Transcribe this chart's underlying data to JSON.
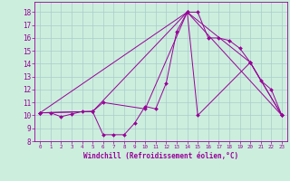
{
  "xlabel": "Windchill (Refroidissement éolien,°C)",
  "bg_color": "#cceedd",
  "grid_color": "#aacccc",
  "line_color": "#990099",
  "xlim": [
    -0.5,
    23.5
  ],
  "ylim": [
    8.0,
    18.8
  ],
  "yticks": [
    8,
    9,
    10,
    11,
    12,
    13,
    14,
    15,
    16,
    17,
    18
  ],
  "xticks": [
    0,
    1,
    2,
    3,
    4,
    5,
    6,
    7,
    8,
    9,
    10,
    11,
    12,
    13,
    14,
    15,
    16,
    17,
    18,
    19,
    20,
    21,
    22,
    23
  ],
  "series": [
    {
      "x": [
        0,
        1,
        2,
        3,
        4,
        5,
        6,
        7,
        8,
        9,
        10,
        11,
        12,
        13,
        14,
        15,
        16,
        17,
        18,
        19,
        20,
        21,
        22,
        23
      ],
      "y": [
        10.2,
        10.2,
        9.9,
        10.1,
        10.3,
        10.3,
        8.5,
        8.5,
        8.5,
        9.4,
        10.7,
        10.5,
        12.5,
        16.5,
        18.0,
        18.0,
        16.0,
        16.0,
        15.8,
        15.2,
        14.1,
        12.7,
        12.0,
        10.0
      ]
    },
    {
      "x": [
        0,
        5,
        6,
        10,
        14,
        15,
        20,
        23
      ],
      "y": [
        10.2,
        10.3,
        11.0,
        10.5,
        18.0,
        10.0,
        14.1,
        10.0
      ]
    },
    {
      "x": [
        0,
        5,
        14,
        20,
        23
      ],
      "y": [
        10.2,
        10.3,
        18.0,
        14.1,
        10.0
      ]
    },
    {
      "x": [
        0,
        14,
        23
      ],
      "y": [
        10.2,
        18.0,
        10.0
      ]
    }
  ]
}
